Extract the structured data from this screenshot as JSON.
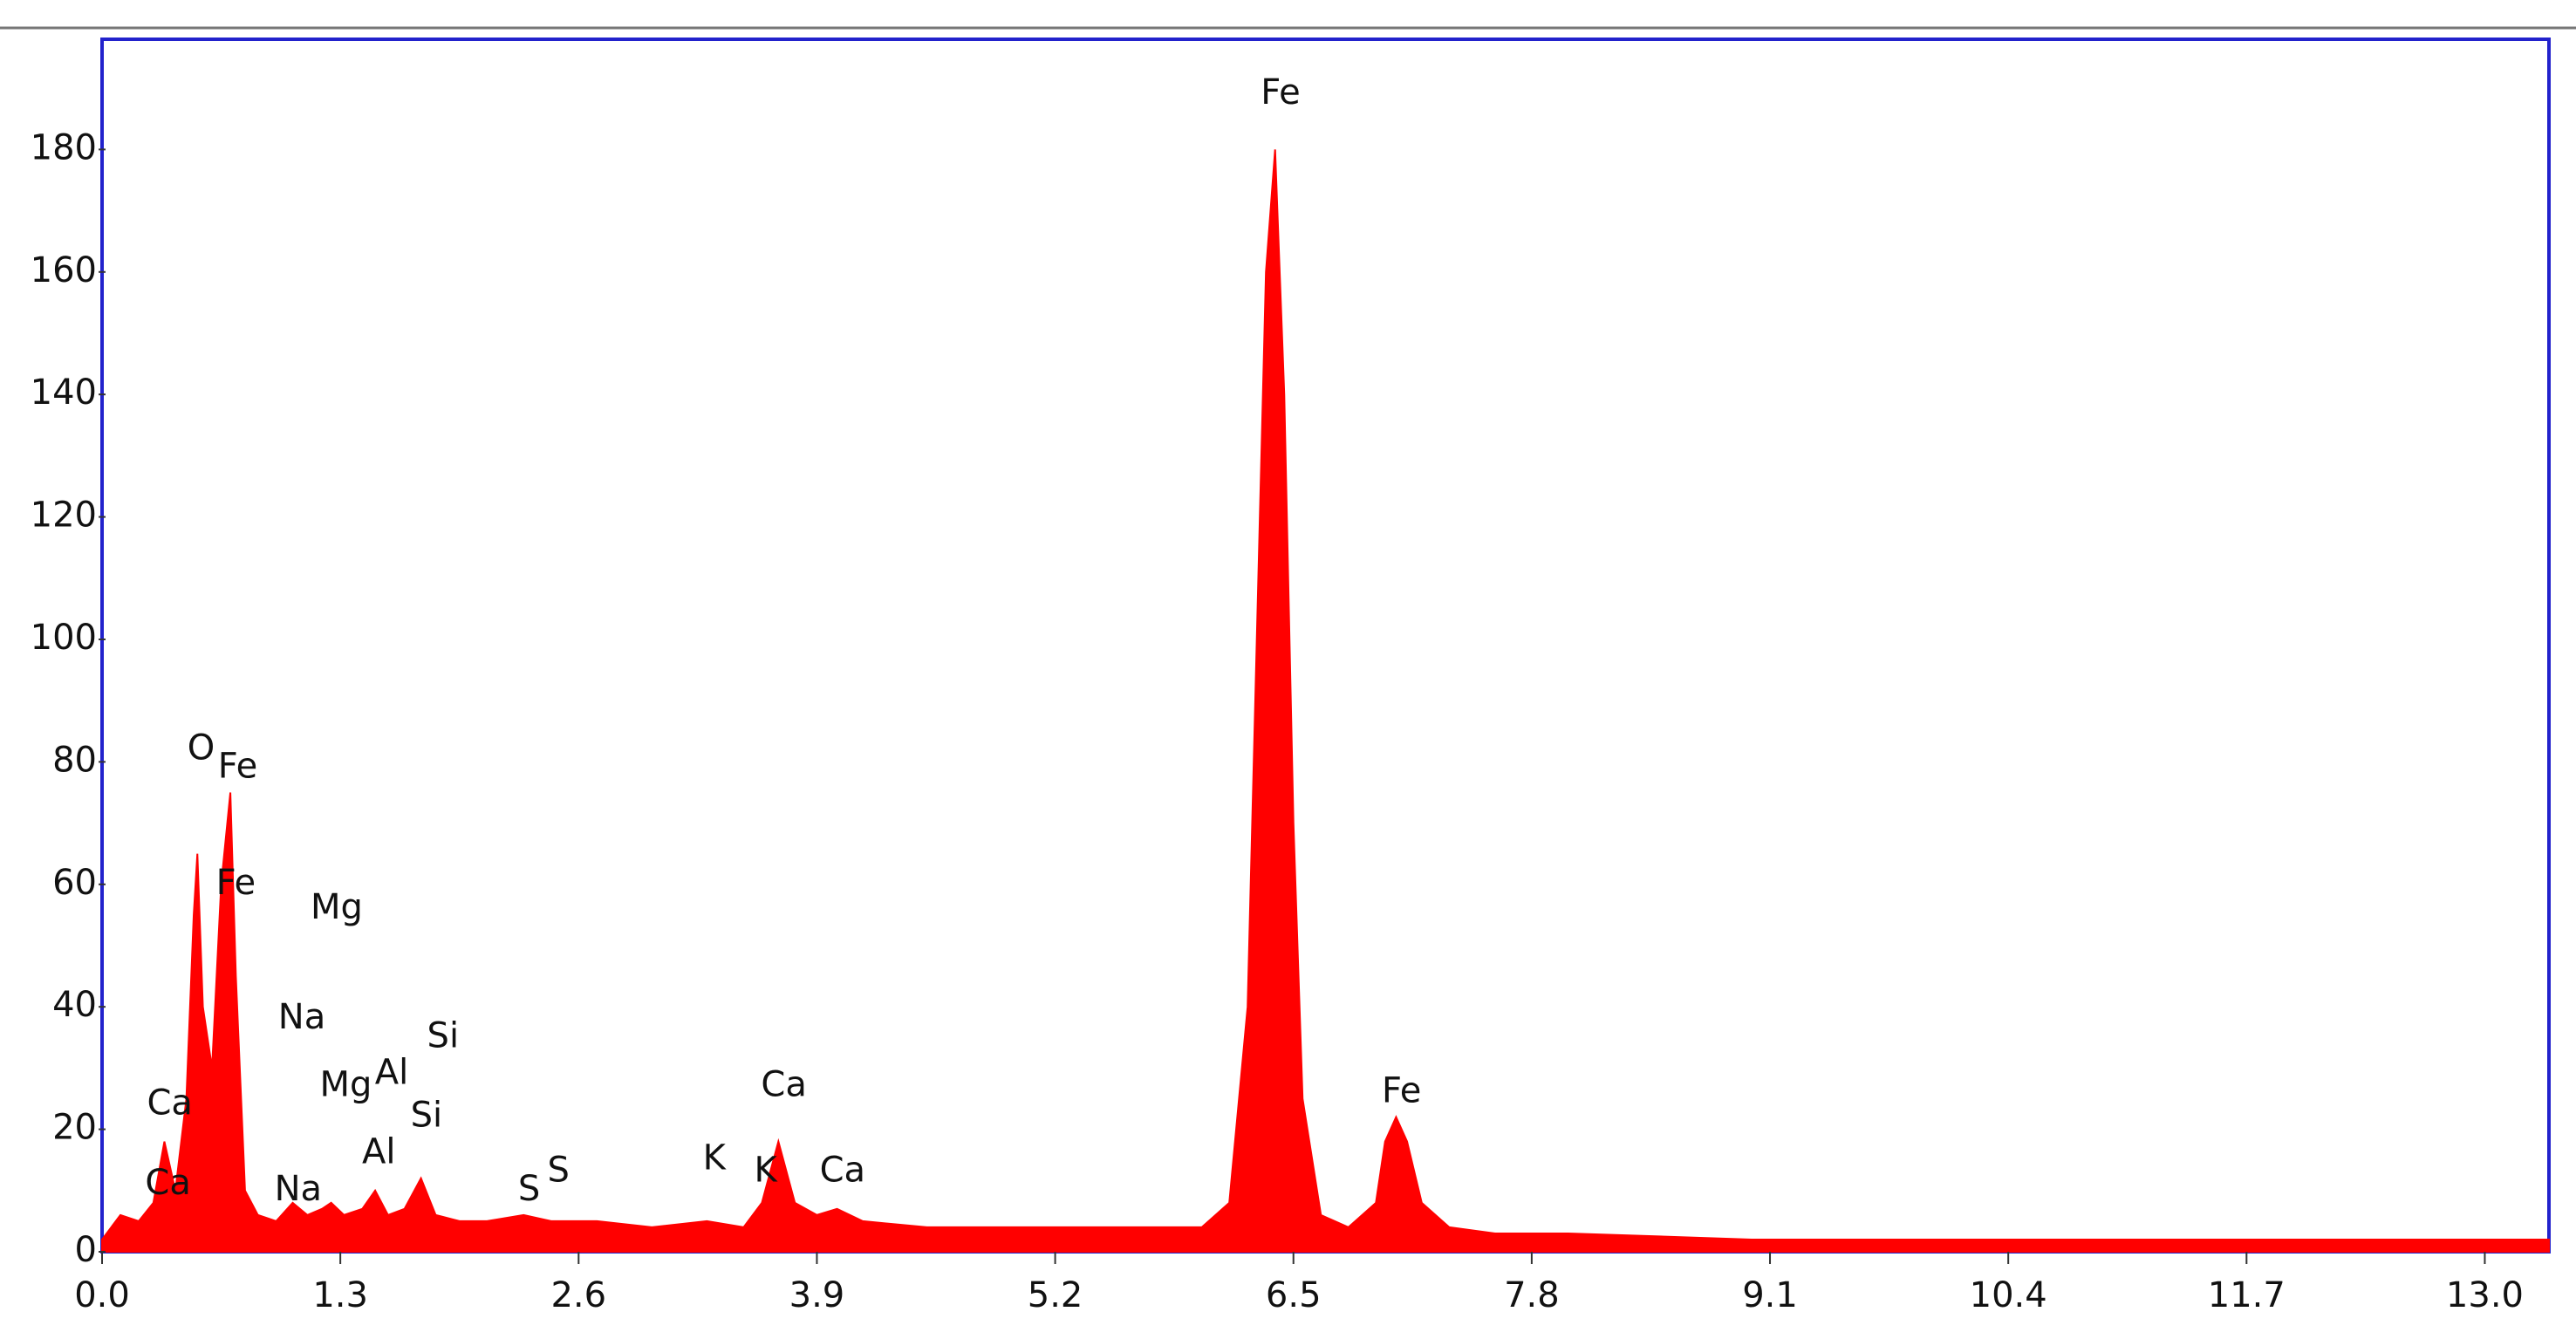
{
  "chart_data": {
    "type": "area",
    "color": "#ff0000",
    "x": [
      0.0,
      0.1,
      0.2,
      0.28,
      0.34,
      0.4,
      0.46,
      0.5,
      0.52,
      0.55,
      0.6,
      0.65,
      0.7,
      0.73,
      0.78,
      0.85,
      0.95,
      1.04,
      1.12,
      1.2,
      1.25,
      1.32,
      1.42,
      1.49,
      1.56,
      1.65,
      1.74,
      1.82,
      1.95,
      2.1,
      2.3,
      2.45,
      2.7,
      3.0,
      3.3,
      3.5,
      3.6,
      3.69,
      3.78,
      3.9,
      4.01,
      4.15,
      4.5,
      5.0,
      5.5,
      6.0,
      6.15,
      6.25,
      6.3,
      6.35,
      6.4,
      6.45,
      6.5,
      6.55,
      6.65,
      6.8,
      6.95,
      7.0,
      7.06,
      7.12,
      7.2,
      7.35,
      7.6,
      8.0,
      9.0,
      10.0,
      11.0,
      12.0,
      13.0,
      13.35
    ],
    "values": [
      2,
      6,
      5,
      8,
      18,
      10,
      25,
      55,
      65,
      40,
      30,
      60,
      75,
      45,
      10,
      6,
      5,
      8,
      6,
      7,
      8,
      6,
      7,
      10,
      6,
      7,
      12,
      6,
      5,
      5,
      6,
      5,
      5,
      4,
      5,
      4,
      8,
      18,
      8,
      6,
      7,
      5,
      4,
      4,
      4,
      4,
      8,
      40,
      100,
      160,
      180,
      140,
      70,
      25,
      6,
      4,
      8,
      18,
      22,
      18,
      8,
      4,
      3,
      3,
      2,
      2,
      2,
      2,
      2,
      2
    ],
    "xlim": [
      0,
      13.35
    ],
    "ylim": [
      0,
      198
    ],
    "xticks": [
      {
        "value": 0,
        "label": "0.0"
      },
      1.3,
      2.6,
      3.9,
      5.2,
      6.5,
      7.8,
      9.1,
      10.4,
      11.7,
      {
        "value": 13,
        "label": "13.0"
      }
    ],
    "yticks": [
      0,
      20,
      40,
      60,
      80,
      100,
      120,
      140,
      160,
      180
    ],
    "annotations": [
      {
        "text": "Fe",
        "x": 6.43,
        "y": 189
      },
      {
        "text": "O",
        "x": 0.54,
        "y": 82
      },
      {
        "text": "Fe",
        "x": 0.74,
        "y": 79
      },
      {
        "text": "Fe",
        "x": 0.73,
        "y": 60
      },
      {
        "text": "Mg",
        "x": 1.28,
        "y": 56
      },
      {
        "text": "Na",
        "x": 1.09,
        "y": 38
      },
      {
        "text": "Si",
        "x": 1.86,
        "y": 35
      },
      {
        "text": "Mg",
        "x": 1.33,
        "y": 27
      },
      {
        "text": "Al",
        "x": 1.58,
        "y": 29
      },
      {
        "text": "Si",
        "x": 1.77,
        "y": 22
      },
      {
        "text": "Ca",
        "x": 0.37,
        "y": 24
      },
      {
        "text": "Al",
        "x": 1.51,
        "y": 16
      },
      {
        "text": "Ca",
        "x": 0.36,
        "y": 11
      },
      {
        "text": "Na",
        "x": 1.07,
        "y": 10
      },
      {
        "text": "S",
        "x": 2.33,
        "y": 10
      },
      {
        "text": "S",
        "x": 2.49,
        "y": 13
      },
      {
        "text": "K",
        "x": 3.34,
        "y": 15
      },
      {
        "text": "K",
        "x": 3.62,
        "y": 13
      },
      {
        "text": "Ca",
        "x": 3.72,
        "y": 27
      },
      {
        "text": "Ca",
        "x": 4.04,
        "y": 13
      },
      {
        "text": "Fe",
        "x": 7.09,
        "y": 26
      }
    ]
  }
}
